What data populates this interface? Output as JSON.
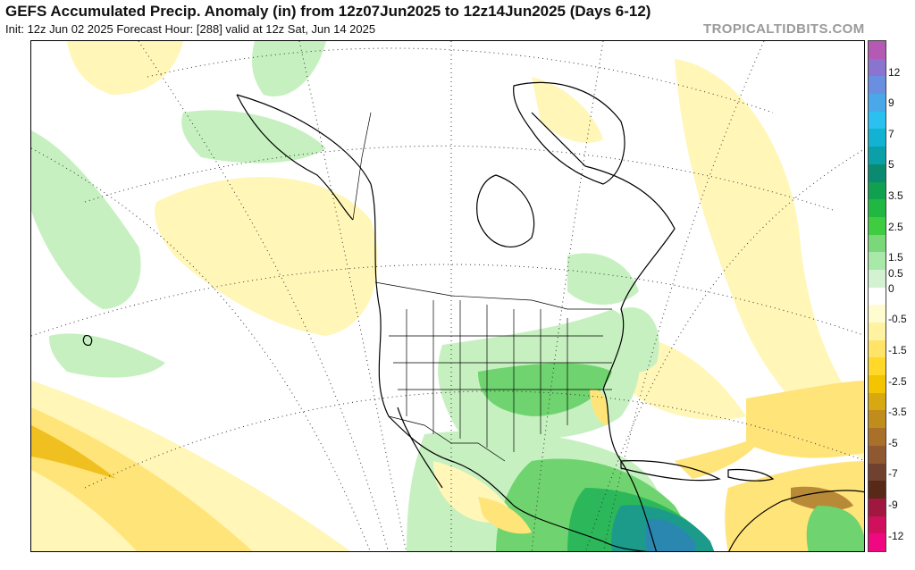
{
  "header": {
    "title": "GEFS Accumulated Precip. Anomaly (in) from 12z07Jun2025 to 12z14Jun2025 (Days 6-12)",
    "subtitle": "Init: 12z Jun 02 2025   Forecast Hour: [288]   valid at 12z Sat, Jun 14 2025",
    "brand": "TROPICALTIDBITS.COM"
  },
  "colorbar": {
    "labels": [
      "12",
      "9",
      "7",
      "5",
      "3.5",
      "2.5",
      "1.5",
      "0.5",
      "0",
      "-0.5",
      "-1.5",
      "-2.5",
      "-3.5",
      "-5",
      "-7",
      "-9",
      "-12"
    ],
    "colors": [
      "#b45ab4",
      "#8a74d0",
      "#6a8ee0",
      "#4aa8ea",
      "#2ac0f0",
      "#12b2d2",
      "#0aa0a8",
      "#0a8a70",
      "#10a050",
      "#20b840",
      "#40cc40",
      "#7ad87a",
      "#a8e8a8",
      "#d2f2d2",
      "#ffffff",
      "#fffcd0",
      "#fff2a0",
      "#ffe468",
      "#ffd82a",
      "#f4c400",
      "#d8a810",
      "#c08c1c",
      "#a87028",
      "#8e5830",
      "#704030",
      "#582818",
      "#a01840",
      "#d0105c",
      "#f00880"
    ]
  },
  "map": {
    "colors": {
      "dry_light": "#fff6b8",
      "dry_mid": "#ffe47a",
      "dry_strong": "#f0c020",
      "dry_brown": "#b88a38",
      "wet_light": "#c6f0c0",
      "wet_mid": "#6fd46f",
      "wet_strong": "#2cb85a",
      "wet_teal": "#1c9a8a",
      "wet_blue": "#2a88b0"
    }
  }
}
